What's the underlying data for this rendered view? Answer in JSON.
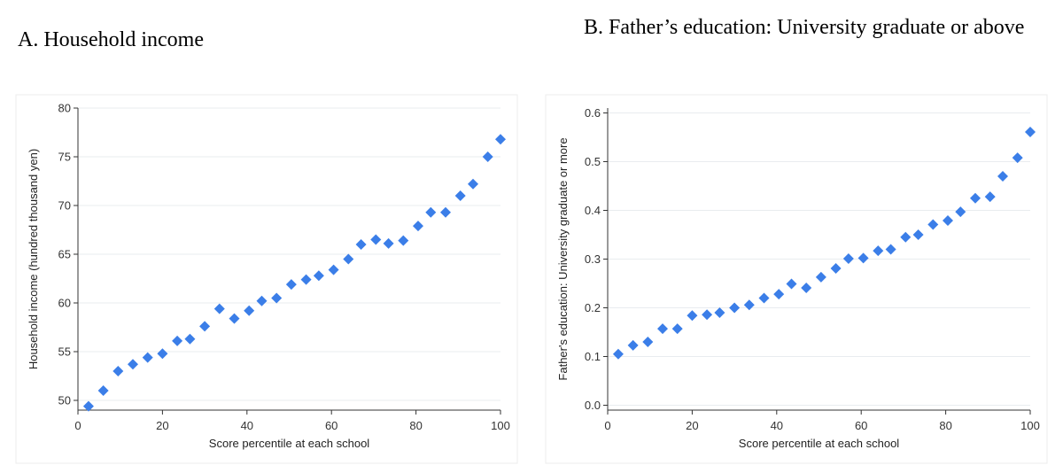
{
  "panels": [
    {
      "title": "A. Household income",
      "chart_data": {
        "type": "scatter",
        "title": "A. Household income",
        "xlabel": "Score percentile at each school",
        "ylabel": "Household income (hundred thousand yen)",
        "xlim": [
          0,
          100
        ],
        "ylim": [
          49,
          80
        ],
        "xticks": [
          0,
          20,
          40,
          60,
          80,
          100
        ],
        "yticks": [
          50,
          55,
          60,
          65,
          70,
          75,
          80
        ],
        "grid": true,
        "marker": "diamond",
        "marker_color": "#3b7ee8",
        "x": [
          2.5,
          6,
          9.5,
          13,
          16.5,
          20,
          23.5,
          26.5,
          30,
          33.5,
          37,
          40.5,
          43.5,
          47,
          50.5,
          54,
          57,
          60.5,
          64,
          67,
          70.5,
          73.5,
          77,
          80.5,
          83.5,
          87,
          90.5,
          93.5,
          97,
          100
        ],
        "y": [
          49.4,
          51.0,
          53.0,
          53.7,
          54.4,
          54.8,
          56.1,
          56.3,
          57.6,
          59.4,
          58.4,
          59.2,
          60.2,
          60.5,
          61.9,
          62.4,
          62.8,
          63.4,
          64.5,
          66.0,
          66.5,
          66.1,
          66.4,
          67.9,
          69.3,
          69.3,
          71.0,
          72.2,
          75.0,
          76.8
        ]
      }
    },
    {
      "title": "B. Father’s education: University graduate or above",
      "chart_data": {
        "type": "scatter",
        "title": "B. Father’s education: University graduate or above",
        "xlabel": "Score percentile at each school",
        "ylabel": "Father's education: University graduate or more",
        "xlim": [
          0,
          100
        ],
        "ylim": [
          -0.01,
          0.61
        ],
        "xticks": [
          0,
          20,
          40,
          60,
          80,
          100
        ],
        "yticks": [
          0.0,
          0.1,
          0.2,
          0.3,
          0.4,
          0.5,
          0.6
        ],
        "grid": true,
        "marker": "diamond",
        "marker_color": "#3b7ee8",
        "x": [
          2.5,
          6,
          9.5,
          13,
          16.5,
          20,
          23.5,
          26.5,
          30,
          33.5,
          37,
          40.5,
          43.5,
          47,
          50.5,
          54,
          57,
          60.5,
          64,
          67,
          70.5,
          73.5,
          77,
          80.5,
          83.5,
          87,
          90.5,
          93.5,
          97,
          100
        ],
        "y": [
          0.105,
          0.123,
          0.13,
          0.157,
          0.157,
          0.184,
          0.186,
          0.19,
          0.2,
          0.206,
          0.22,
          0.228,
          0.249,
          0.241,
          0.263,
          0.281,
          0.301,
          0.302,
          0.317,
          0.32,
          0.345,
          0.35,
          0.371,
          0.379,
          0.397,
          0.425,
          0.428,
          0.47,
          0.508,
          0.561
        ]
      }
    }
  ],
  "tick_format": {
    "y0": 0,
    "y1": 1
  }
}
